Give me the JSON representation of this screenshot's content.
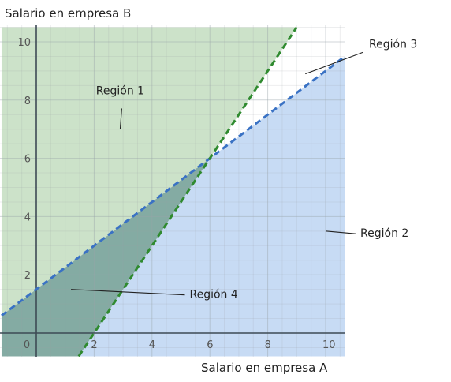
{
  "chart_data": {
    "type": "line",
    "title": "",
    "xlabel": "Salario en empresa A",
    "ylabel": "Salario en empresa B",
    "xlim": [
      -1.2,
      10.7
    ],
    "ylim": [
      -0.8,
      10.5
    ],
    "x_ticks": [
      "0",
      "2",
      "4",
      "6",
      "8",
      "10"
    ],
    "y_ticks": [
      "2",
      "4",
      "6",
      "8",
      "10"
    ],
    "grid": true,
    "series": [
      {
        "kind": "dashed-line",
        "color": "#3a72c4",
        "slope": 0.75,
        "intercept": 1.5
      },
      {
        "kind": "dashed-line",
        "color": "#2f8a2f",
        "slope": 1.5,
        "intercept": -3
      }
    ],
    "intersection": {
      "x": 6,
      "y": 6
    },
    "regions": [
      {
        "label": "Región 1",
        "color": "#8fbf88",
        "label_at": [
          2.9,
          8.2
        ],
        "pointer_at": [
          2.9,
          7.0
        ]
      },
      {
        "label": "Región 2",
        "color": "#a9c8ee",
        "label_at": [
          11.2,
          3.3
        ],
        "pointer_at": [
          10.0,
          3.5
        ]
      },
      {
        "label": "Región 3",
        "color": "#ffffff",
        "label_at": [
          11.5,
          9.8
        ],
        "pointer_at": [
          9.3,
          8.9
        ]
      },
      {
        "label": "Región 4",
        "color": "#6f9c93",
        "label_at": [
          5.3,
          1.2
        ],
        "pointer_at": [
          1.2,
          1.5
        ]
      }
    ]
  }
}
